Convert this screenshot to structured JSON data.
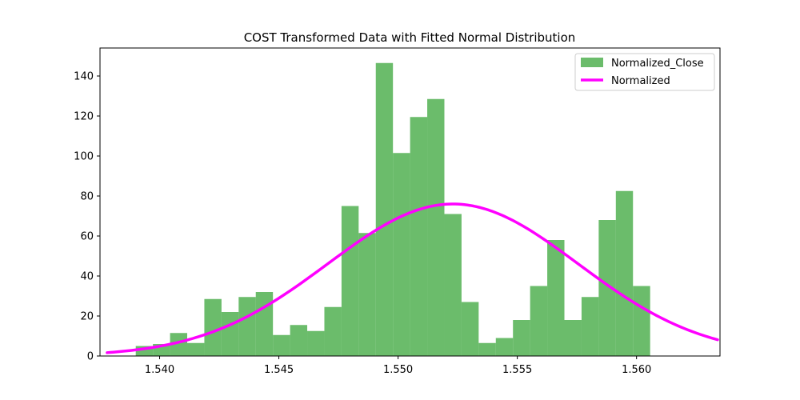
{
  "chart_data": {
    "type": "bar",
    "title": "COST Transformed Data with Fitted Normal Distribution",
    "xlabel": "",
    "ylabel": "",
    "xlim": [
      1.5375,
      1.5635
    ],
    "ylim": [
      0,
      154
    ],
    "xticks": [
      1.54,
      1.545,
      1.55,
      1.555,
      1.56
    ],
    "xtick_labels": [
      "1.540",
      "1.545",
      "1.550",
      "1.555",
      "1.560"
    ],
    "yticks": [
      0,
      20,
      40,
      60,
      80,
      100,
      120,
      140
    ],
    "ytick_labels": [
      "0",
      "20",
      "40",
      "60",
      "80",
      "100",
      "120",
      "140"
    ],
    "grid": false,
    "legend": {
      "position": "top-right",
      "entries": [
        "Normalized_Close",
        "Normalized"
      ]
    },
    "histogram": {
      "name": "Normalized_Close",
      "color": "#2ca02c",
      "bin_start": 1.539,
      "bin_width": 0.000719,
      "values": [
        5,
        6,
        11.5,
        6.5,
        28.5,
        22,
        29.5,
        32,
        10.5,
        15.5,
        12.5,
        24.5,
        75,
        61.5,
        146.5,
        101.5,
        119.5,
        128.5,
        71,
        27,
        6.5,
        9,
        18,
        35,
        58,
        18,
        29.5,
        68,
        82.5,
        35
      ]
    },
    "curve": {
      "name": "Normalized",
      "color": "#ff00ff",
      "distribution": "normal",
      "x_range": [
        1.5378,
        1.5634
      ],
      "mean": 1.5523,
      "std": 0.00525,
      "peak": 76
    }
  }
}
